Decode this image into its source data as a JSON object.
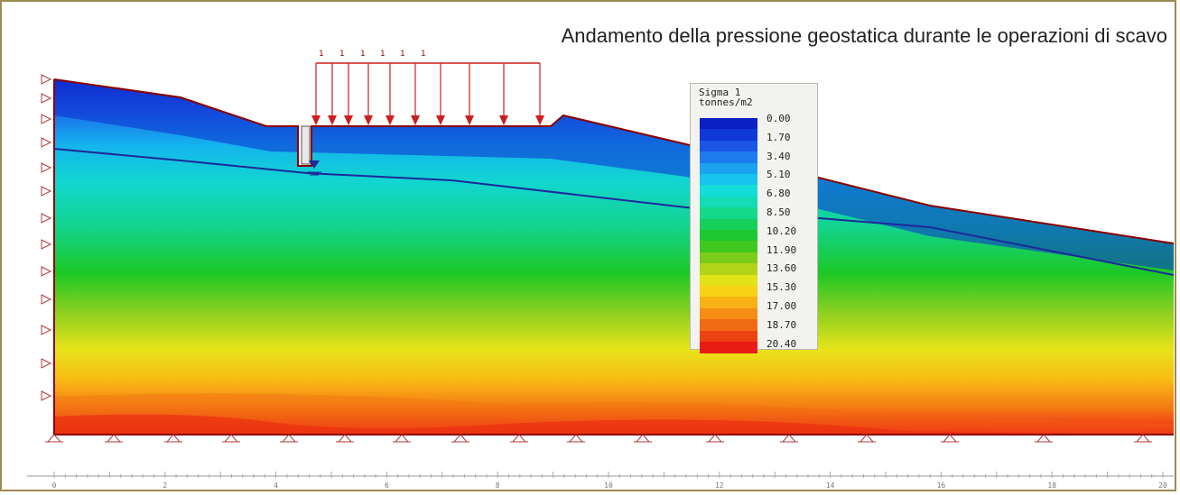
{
  "title": "Andamento della pressione geostatica durante le operazioni di scavo",
  "legend": {
    "title_line1": "Sigma 1",
    "title_line2": "tonnes/m2",
    "values": [
      "0.00",
      "1.70",
      "3.40",
      "5.10",
      "6.80",
      "8.50",
      "10.20",
      "11.90",
      "13.60",
      "15.30",
      "17.00",
      "18.70",
      "20.40"
    ]
  },
  "axis": {
    "ticks": [
      "0",
      "2",
      "4",
      "6",
      "8",
      "10",
      "12",
      "14",
      "16",
      "18",
      "20"
    ]
  },
  "load_labels": [
    "1",
    "1",
    "1",
    "1",
    "1",
    "1"
  ],
  "colors": {
    "frame": "#9c8a50",
    "outline": "#8b0000",
    "water_table": "#1c2a9a",
    "load_arrow": "#cc1e1e",
    "support": "#b03a3a"
  }
}
